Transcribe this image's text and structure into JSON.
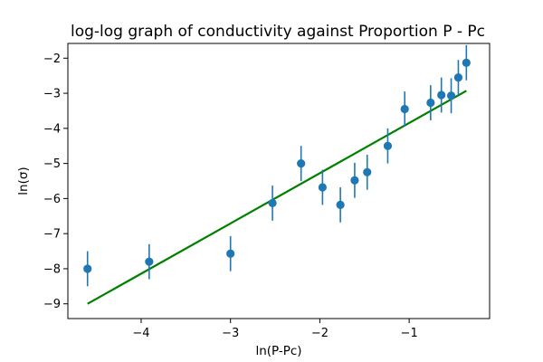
{
  "chart_data": {
    "type": "scatter",
    "title": "log-log graph of conductivity against Proportion P - Pc",
    "xlabel": "ln(P-Pc)",
    "ylabel": "ln(σ)",
    "xlim": [
      -4.82,
      -0.1
    ],
    "ylim": [
      -9.42,
      -1.58
    ],
    "xticks": [
      -4,
      -3,
      -2,
      -1
    ],
    "xtick_labels": [
      "−4",
      "−3",
      "−2",
      "−1"
    ],
    "yticks": [
      -9,
      -8,
      -7,
      -6,
      -5,
      -4,
      -3,
      -2
    ],
    "ytick_labels": [
      "−9",
      "−8",
      "−7",
      "−6",
      "−5",
      "−4",
      "−3",
      "−2"
    ],
    "grid": false,
    "colors": {
      "points": "#1f77b4",
      "fit": "#008000"
    },
    "series": [
      {
        "points": [
          {
            "x": -4.6,
            "y": -8.0,
            "err": 0.5
          },
          {
            "x": -3.91,
            "y": -7.8,
            "err": 0.5
          },
          {
            "x": -3.0,
            "y": -7.57,
            "err": 0.5
          },
          {
            "x": -2.53,
            "y": -6.13,
            "err": 0.5
          },
          {
            "x": -2.21,
            "y": -5.0,
            "err": 0.5
          },
          {
            "x": -1.97,
            "y": -5.68,
            "err": 0.5
          },
          {
            "x": -1.77,
            "y": -6.18,
            "err": 0.5
          },
          {
            "x": -1.61,
            "y": -5.48,
            "err": 0.5
          },
          {
            "x": -1.47,
            "y": -5.25,
            "err": 0.5
          },
          {
            "x": -1.24,
            "y": -4.5,
            "err": 0.5
          },
          {
            "x": -1.05,
            "y": -3.45,
            "err": 0.5
          },
          {
            "x": -0.76,
            "y": -3.27,
            "err": 0.5
          },
          {
            "x": -0.64,
            "y": -3.05,
            "err": 0.5
          },
          {
            "x": -0.53,
            "y": -3.07,
            "err": 0.5
          },
          {
            "x": -0.45,
            "y": -2.55,
            "err": 0.5
          },
          {
            "x": -0.36,
            "y": -2.13,
            "err": 0.5
          }
        ]
      }
    ],
    "fit_line": {
      "x": [
        -4.6,
        -0.36
      ],
      "y": [
        -9.0,
        -2.93
      ]
    }
  }
}
